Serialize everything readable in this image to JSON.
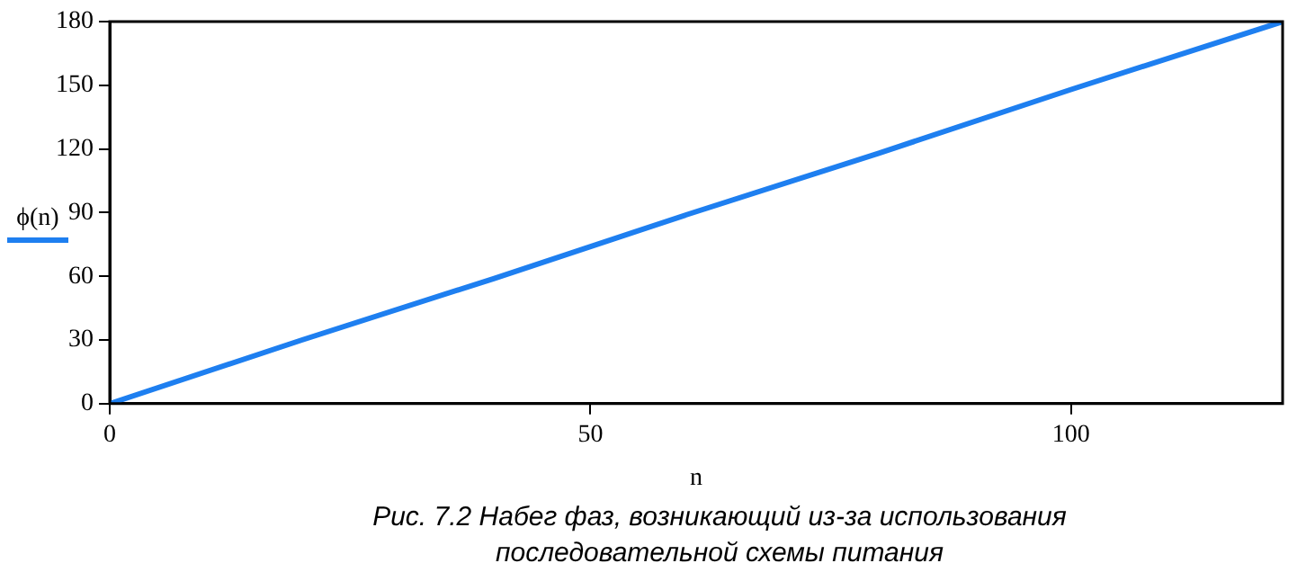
{
  "chart_data": {
    "type": "line",
    "xlabel": "n",
    "annotations": [
      "Рис. 7.2 Набег фаз, возникающий из-за использования последовательной схемы питания"
    ],
    "x": [
      0,
      20,
      40,
      60,
      80,
      100,
      122
    ],
    "series": [
      {
        "name": "ϕ(n)",
        "color": "#1e7ff0",
        "values": [
          0,
          30,
          59,
          89,
          118,
          148,
          180
        ]
      }
    ],
    "xlim": [
      0,
      122
    ],
    "xticks": [
      0,
      50,
      100
    ],
    "ylim": [
      0,
      180
    ],
    "yticks": [
      0,
      30,
      60,
      90,
      120,
      150,
      180
    ],
    "grid": false,
    "legend": "left",
    "marker": "none",
    "line_style": "solid"
  }
}
